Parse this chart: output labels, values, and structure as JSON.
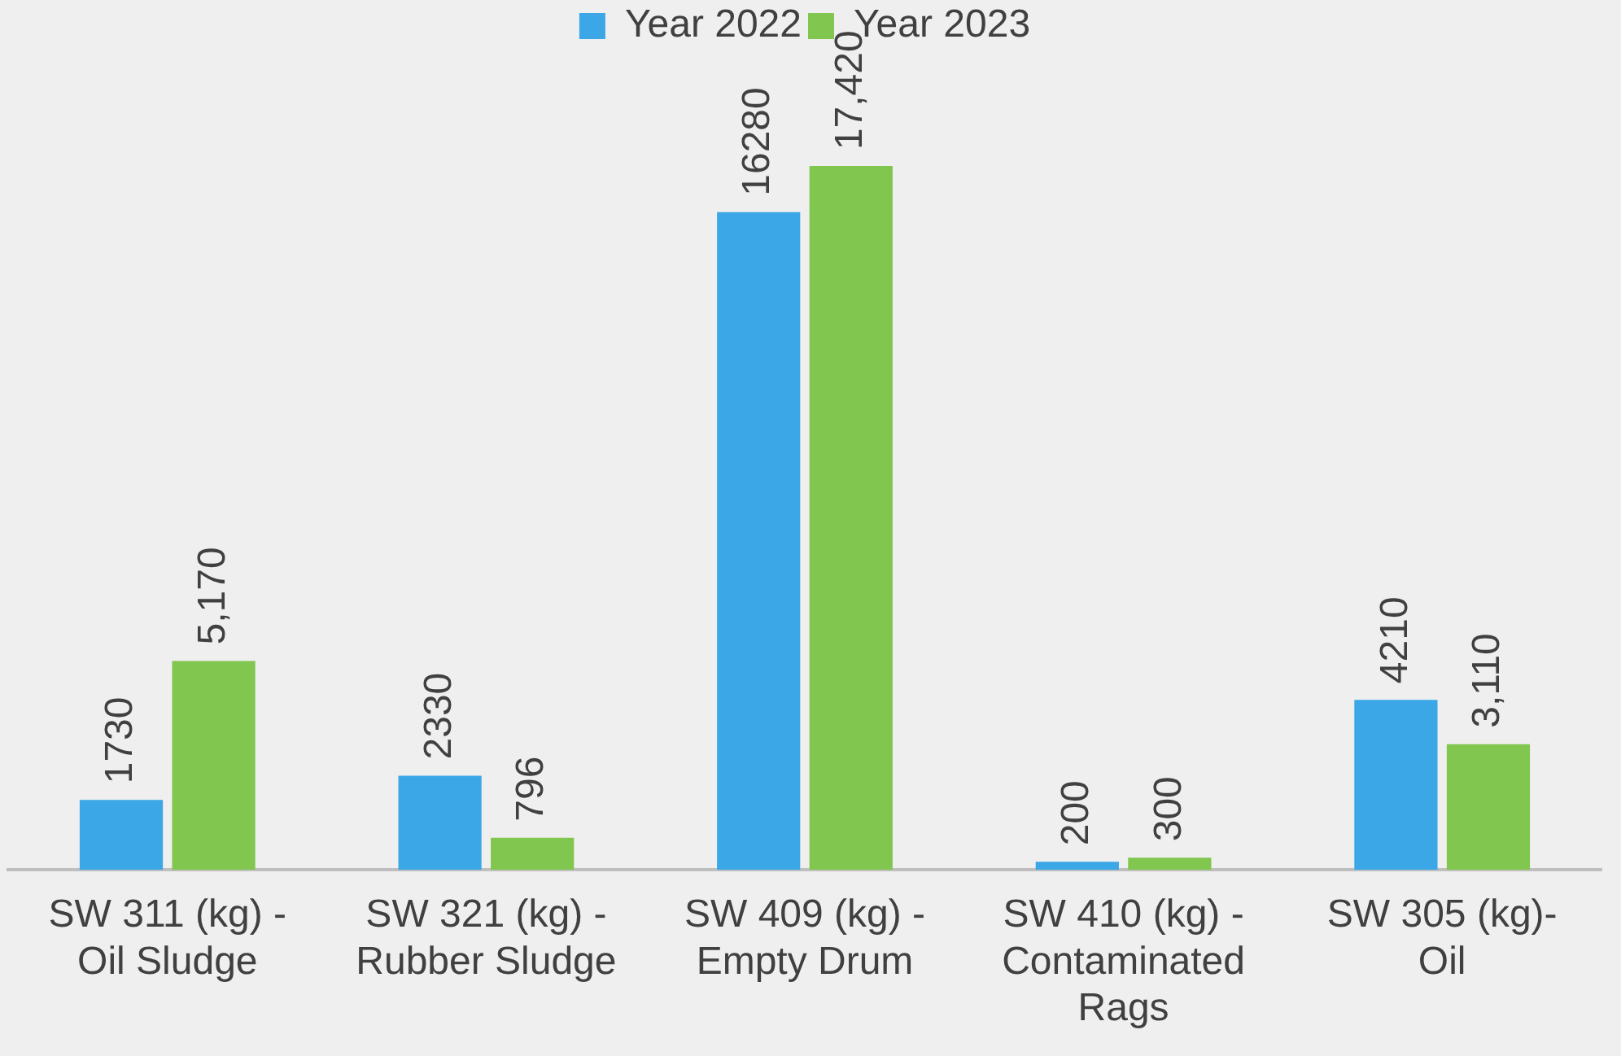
{
  "chart_data": {
    "type": "bar",
    "categories": [
      "SW 311 (kg) -Oil Sludge",
      "SW 321 (kg) -Rubber Sludge",
      "SW 409 (kg) -Empty Drum",
      "SW 410 (kg) -Contaminated Rags",
      "SW 305 (kg)-Oil"
    ],
    "series": [
      {
        "name": "Year 2022",
        "color": "#3ba7e6",
        "values": [
          1730,
          2330,
          16280,
          200,
          4210
        ],
        "value_labels": [
          "1730",
          "2330",
          "16280",
          "200",
          "4210"
        ]
      },
      {
        "name": "Year 2023",
        "color": "#80c64f",
        "values": [
          5170,
          796,
          17420,
          300,
          3110
        ],
        "value_labels": [
          "5,170",
          "796",
          "17,420",
          "300",
          "3,110"
        ]
      }
    ],
    "legend": "top",
    "grid": false
  }
}
